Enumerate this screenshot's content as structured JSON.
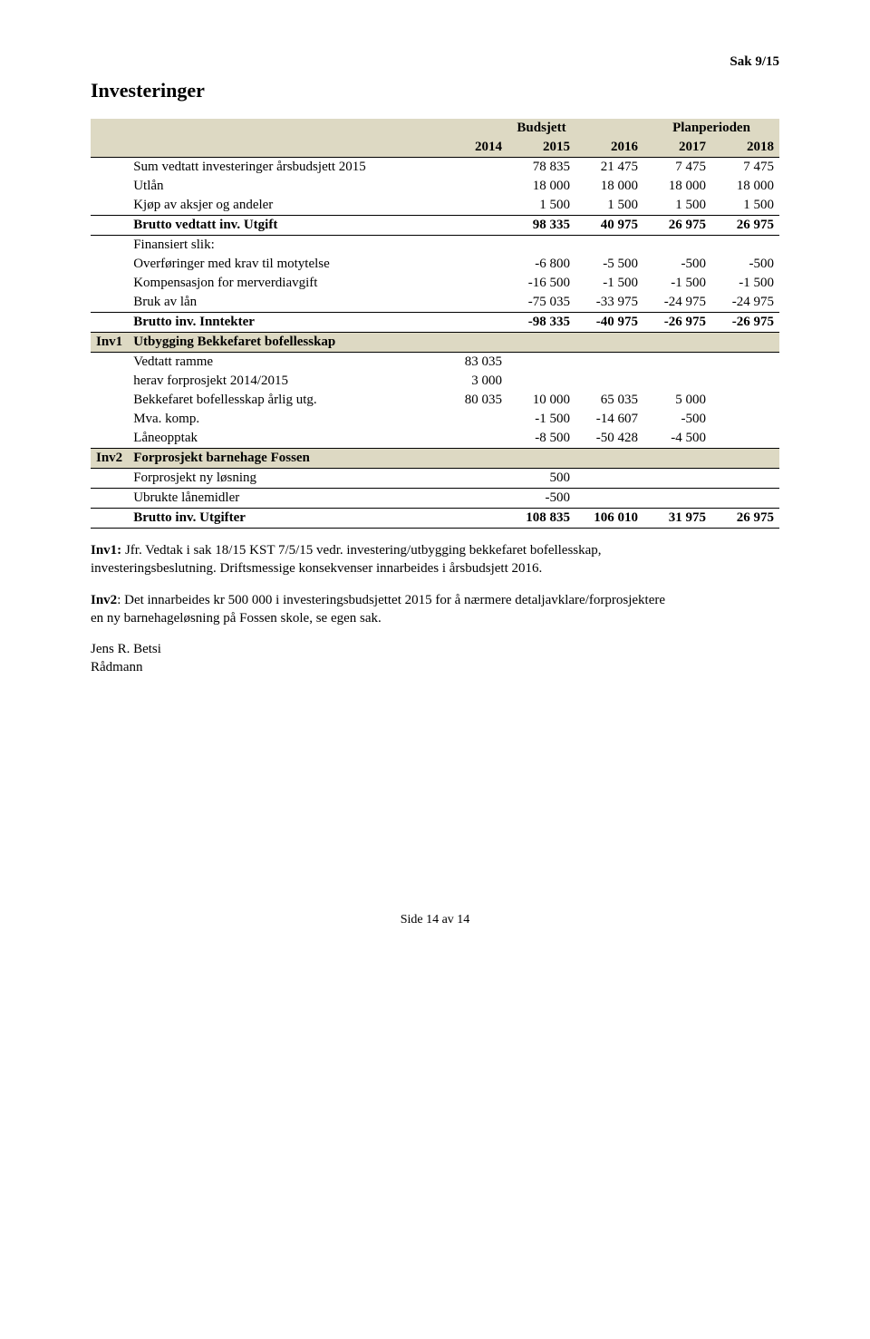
{
  "header": {
    "case_ref": "Sak 9/15"
  },
  "title": "Investeringer",
  "table": {
    "group_headers": {
      "budsjett": "Budsjett",
      "planperioden": "Planperioden"
    },
    "years": {
      "y2014": "2014",
      "y2015": "2015",
      "y2016": "2016",
      "y2017": "2017",
      "y2018": "2018"
    },
    "rows": [
      {
        "id": "",
        "label": "Sum vedtatt investeringer årsbudsjett 2015",
        "y2014": "",
        "y2015": "78 835",
        "y2016": "21 475",
        "y2017": "7 475",
        "y2018": "7 475",
        "shaded": false
      },
      {
        "id": "",
        "label": "Utlån",
        "y2014": "",
        "y2015": "18 000",
        "y2016": "18 000",
        "y2017": "18 000",
        "y2018": "18 000",
        "shaded": false
      },
      {
        "id": "",
        "label": "Kjøp av aksjer og andeler",
        "y2014": "",
        "y2015": "1 500",
        "y2016": "1 500",
        "y2017": "1 500",
        "y2018": "1 500",
        "shaded": false
      }
    ],
    "brutto_utgift": {
      "label": "Brutto vedtatt inv. Utgift",
      "y2015": "98 335",
      "y2016": "40 975",
      "y2017": "26 975",
      "y2018": "26 975"
    },
    "finansiert_slik": "Finansiert slik:",
    "fin_rows": [
      {
        "label": "Overføringer med krav til motytelse",
        "y2015": "-6 800",
        "y2016": "-5 500",
        "y2017": "-500",
        "y2018": "-500"
      },
      {
        "label": "Kompensasjon for merverdiavgift",
        "y2015": "-16 500",
        "y2016": "-1 500",
        "y2017": "-1 500",
        "y2018": "-1 500"
      },
      {
        "label": "Bruk av lån",
        "y2015": "-75 035",
        "y2016": "-33 975",
        "y2017": "-24 975",
        "y2018": "-24 975"
      }
    ],
    "brutto_inntekter": {
      "label": "Brutto inv. Inntekter",
      "y2015": "-98 335",
      "y2016": "-40 975",
      "y2017": "-26 975",
      "y2018": "-26 975"
    },
    "inv1": {
      "id": "Inv1",
      "title": "Utbygging Bekkefaret bofellesskap",
      "rows": [
        {
          "label": "Vedtatt ramme",
          "y2014": "83 035"
        },
        {
          "label": "herav forprosjekt 2014/2015",
          "y2014": "3 000"
        },
        {
          "label": "Bekkefaret bofellesskap årlig utg.",
          "y2014": "80 035",
          "y2015": "10 000",
          "y2016": "65 035",
          "y2017": "5 000"
        },
        {
          "label": "Mva. komp.",
          "y2015": "-1 500",
          "y2016": "-14 607",
          "y2017": "-500"
        },
        {
          "label": "Låneopptak",
          "y2015": "-8 500",
          "y2016": "-50 428",
          "y2017": "-4 500"
        }
      ]
    },
    "inv2": {
      "id": "Inv2",
      "title": "Forprosjekt barnehage Fossen",
      "rows": [
        {
          "label": "Forprosjekt ny løsning",
          "y2015": "500"
        },
        {
          "label": "Ubrukte lånemidler",
          "y2015": "-500"
        }
      ]
    },
    "brutto_utgifter_total": {
      "label": "Brutto inv. Utgifter",
      "y2015": "108 835",
      "y2016": "106 010",
      "y2017": "31 975",
      "y2018": "26 975"
    }
  },
  "paragraphs": {
    "p1": "Inv1: Jfr. Vedtak i sak 18/15 KST 7/5/15 vedr. investering/utbygging bekkefaret bofellesskap, investeringsbeslutning. Driftsmessige konsekvenser innarbeides i årsbudsjett 2016.",
    "p2": "Inv2: Det innarbeides kr 500 000 i investeringsbudsjettet 2015 for å nærmere detaljavklare/forprosjektere en ny barnehageløsning på Fossen skole, se egen sak.",
    "signature_name": "Jens R. Betsi",
    "signature_title": "Rådmann"
  },
  "footer": "Side 14 av 14",
  "colors": {
    "shaded_row": "#ddd9c3",
    "text": "#000000",
    "background": "#ffffff"
  }
}
